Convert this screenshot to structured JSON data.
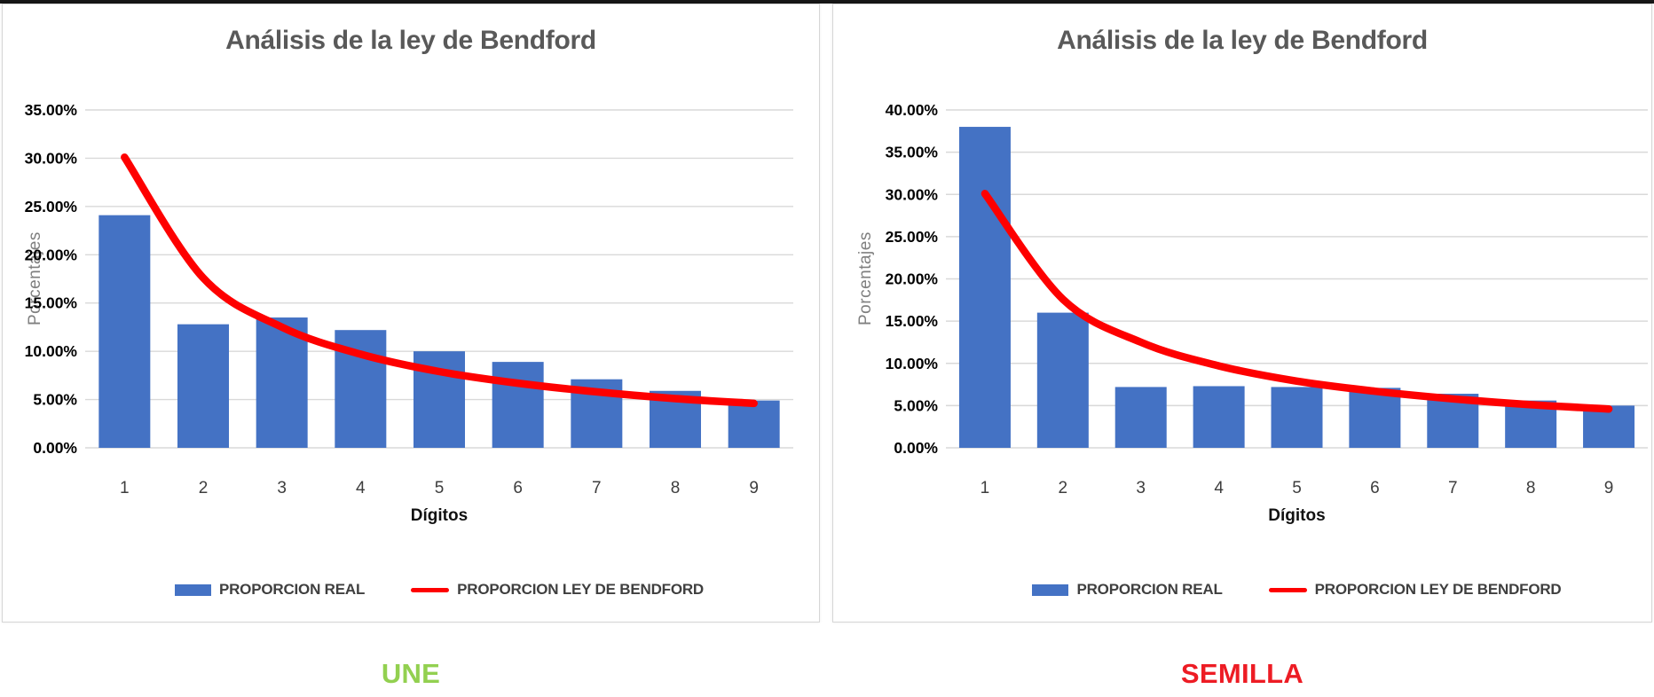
{
  "page": {
    "background": "#ffffff",
    "top_edge_color": "#161616"
  },
  "charts": [
    {
      "title": "Análisis de la ley de Bendford",
      "ylabel": "Porcentajes",
      "xlabel": "Dígitos",
      "footer": {
        "label": "UNE",
        "color": "#92d050"
      },
      "legend": [
        {
          "label": "PROPORCION REAL",
          "type": "bar",
          "color": "#4472c4"
        },
        {
          "label": "PROPORCION LEY DE BENDFORD",
          "type": "line",
          "color": "#fe0000"
        }
      ],
      "chart_data": {
        "type": "bar",
        "categories": [
          "1",
          "2",
          "3",
          "4",
          "5",
          "6",
          "7",
          "8",
          "9"
        ],
        "series": [
          {
            "name": "PROPORCION REAL",
            "type": "bar",
            "color": "#4472c4",
            "values": [
              24.1,
              12.8,
              13.5,
              12.2,
              10.0,
              8.9,
              7.1,
              5.9,
              4.9
            ]
          },
          {
            "name": "PROPORCION LEY DE BENDFORD",
            "type": "line",
            "color": "#fe0000",
            "values": [
              30.1,
              17.6,
              12.5,
              9.7,
              7.9,
              6.7,
              5.8,
              5.1,
              4.6
            ]
          }
        ],
        "title": "Análisis de la ley de Bendford",
        "xlabel": "Dígitos",
        "ylabel": "Porcentajes",
        "ylim": [
          0,
          35
        ],
        "ytick_step": 5,
        "ytick_labels": [
          "0.00%",
          "5.00%",
          "10.00%",
          "15.00%",
          "20.00%",
          "25.00%",
          "30.00%",
          "35.00%"
        ],
        "grid": true,
        "legend_position": "bottom",
        "gridline_color": "#d9d9d9"
      }
    },
    {
      "title": "Análisis de la ley de Bendford",
      "ylabel": "Porcentajes",
      "xlabel": "Dígitos",
      "footer": {
        "label": "SEMILLA",
        "color": "#ed1c24"
      },
      "legend": [
        {
          "label": "PROPORCION REAL",
          "type": "bar",
          "color": "#4472c4"
        },
        {
          "label": "PROPORCION LEY DE BENDFORD",
          "type": "line",
          "color": "#fe0000"
        }
      ],
      "chart_data": {
        "type": "bar",
        "categories": [
          "1",
          "2",
          "3",
          "4",
          "5",
          "6",
          "7",
          "8",
          "9"
        ],
        "series": [
          {
            "name": "PROPORCION REAL",
            "type": "bar",
            "color": "#4472c4",
            "values": [
              38.0,
              16.0,
              7.2,
              7.3,
              7.2,
              7.1,
              6.4,
              5.6,
              5.0
            ]
          },
          {
            "name": "PROPORCION LEY DE BENDFORD",
            "type": "line",
            "color": "#fe0000",
            "values": [
              30.1,
              17.6,
              12.5,
              9.7,
              7.9,
              6.7,
              5.8,
              5.1,
              4.6
            ]
          }
        ],
        "title": "Análisis de la ley de Bendford",
        "xlabel": "Dígitos",
        "ylabel": "Porcentajes",
        "ylim": [
          0,
          40
        ],
        "ytick_step": 5,
        "ytick_labels": [
          "0.00%",
          "5.00%",
          "10.00%",
          "15.00%",
          "20.00%",
          "25.00%",
          "30.00%",
          "35.00%",
          "40.00%"
        ],
        "grid": true,
        "legend_position": "bottom",
        "gridline_color": "#d9d9d9"
      }
    }
  ]
}
